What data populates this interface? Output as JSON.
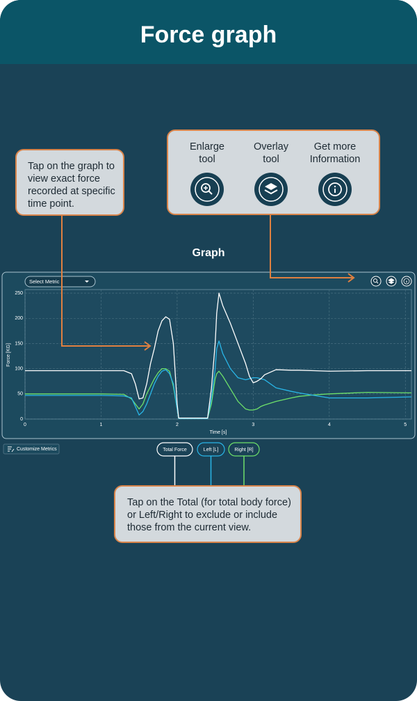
{
  "header": {
    "title": "Force graph"
  },
  "graph_tap_callout": "Tap on the graph to view exact force recorded at specific time point.",
  "tools_callout": {
    "tools": [
      "Enlarge tool",
      "Overlay tool",
      "Get more Information"
    ]
  },
  "section_title": "Graph",
  "controls": {
    "select_metric": "Select Metric",
    "customize_metrics": "Customize Metrics"
  },
  "legend_callout": "Tap on the Total (for total body force) or Left/Right to exclude or include those from the current view.",
  "chart_data": {
    "type": "line",
    "x_label": "Time [s]",
    "y_label": "Force [KG]",
    "x": [
      0,
      0.5,
      1,
      1.3,
      1.4,
      1.45,
      1.5,
      1.55,
      1.6,
      1.65,
      1.7,
      1.75,
      1.8,
      1.85,
      1.9,
      1.95,
      2.0,
      2.02,
      2.4,
      2.45,
      2.5,
      2.52,
      2.55,
      2.6,
      2.7,
      2.8,
      2.9,
      2.95,
      3.0,
      3.05,
      3.1,
      3.15,
      3.3,
      3.5,
      3.6,
      3.8,
      4.0,
      4.5,
      5.08
    ],
    "series": [
      {
        "name": "Total Force",
        "color": "#ffffff",
        "values": [
          96,
          96,
          96,
          96,
          90,
          70,
          40,
          42,
          70,
          110,
          140,
          175,
          195,
          203,
          198,
          150,
          30,
          2,
          2,
          60,
          150,
          210,
          250,
          225,
          190,
          150,
          110,
          85,
          72,
          75,
          80,
          88,
          98,
          97,
          97,
          96,
          95,
          96,
          96
        ]
      },
      {
        "name": "Left [L]",
        "color": "#29b6e8",
        "values": [
          47,
          47,
          47,
          46,
          42,
          25,
          8,
          15,
          30,
          50,
          70,
          85,
          95,
          98,
          90,
          70,
          20,
          1,
          1,
          40,
          100,
          140,
          155,
          130,
          100,
          82,
          78,
          80,
          82,
          82,
          80,
          78,
          62,
          55,
          52,
          47,
          42,
          42,
          44
        ]
      },
      {
        "name": "Right [R]",
        "color": "#6ee06a",
        "values": [
          50,
          50,
          50,
          49,
          40,
          30,
          20,
          30,
          50,
          65,
          80,
          92,
          100,
          100,
          95,
          65,
          20,
          1,
          1,
          30,
          80,
          90,
          95,
          85,
          60,
          35,
          20,
          18,
          18,
          20,
          25,
          28,
          35,
          42,
          45,
          48,
          50,
          53,
          52
        ]
      }
    ],
    "xlim": [
      0,
      5.08
    ],
    "ylim": [
      0,
      257
    ],
    "xticks": [
      0,
      1,
      2,
      3,
      4,
      5
    ],
    "yticks": [
      0,
      50,
      100,
      150,
      200,
      250
    ],
    "grid": true
  }
}
